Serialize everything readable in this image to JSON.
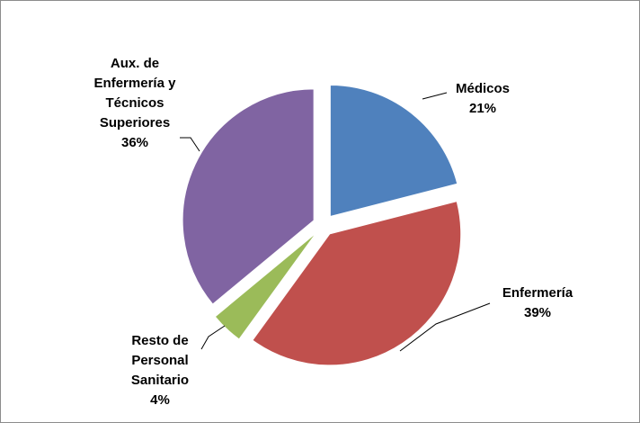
{
  "chart_data": {
    "type": "pie",
    "categories": [
      "Médicos",
      "Enfermería",
      "Resto de Personal Sanitario",
      "Aux. de Enfermería y Técnicos Superiores"
    ],
    "values": [
      21,
      39,
      4,
      36
    ],
    "value_labels": [
      "21%",
      "39%",
      "4%",
      "36%"
    ],
    "colors": [
      "#4f81bd",
      "#c0504d",
      "#9bbb59",
      "#8064a2"
    ],
    "exploded": true
  }
}
